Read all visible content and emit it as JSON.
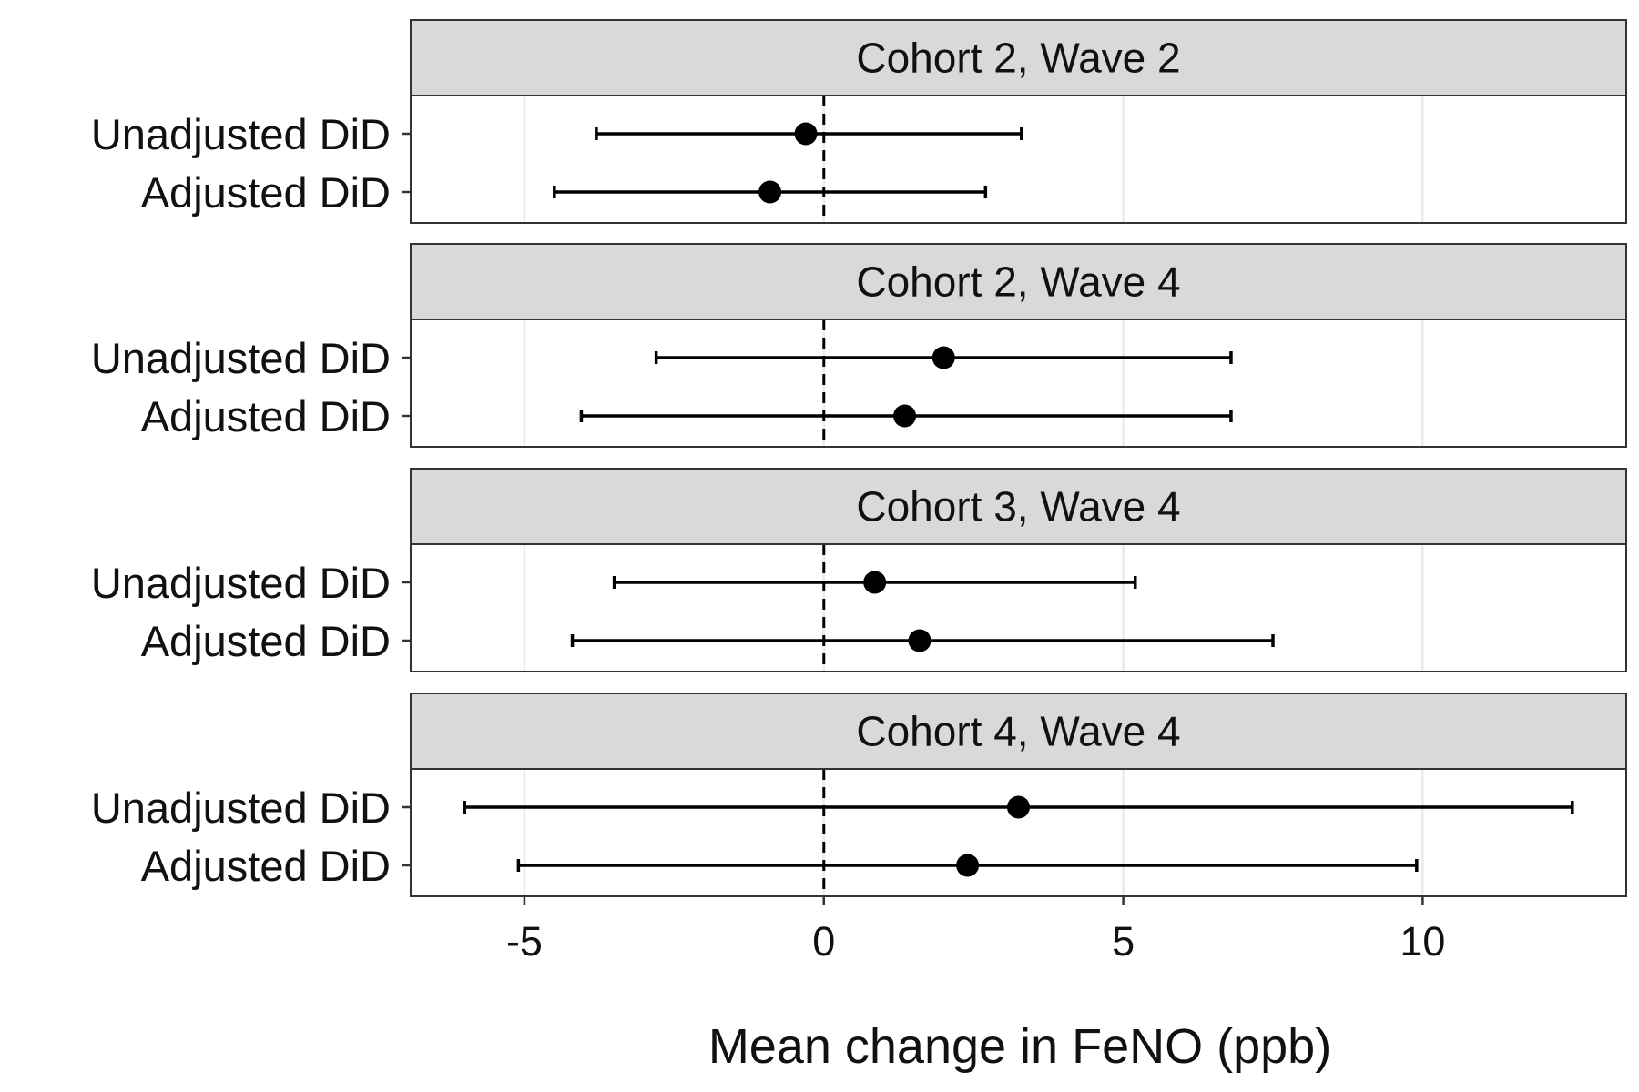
{
  "chart_data": {
    "type": "scatter",
    "subtype": "forest-plot-with-error-bars",
    "xlabel": "Mean change in FeNO (ppb)",
    "xlim": [
      -6.9,
      13.4
    ],
    "xticks": [
      -5,
      0,
      5,
      10
    ],
    "xtick_labels": [
      "-5",
      "0",
      "5",
      "10"
    ],
    "reference_line_x": 0,
    "grid": "vertical-major",
    "categories": [
      "Unadjusted DiD",
      "Adjusted DiD"
    ],
    "colors": {
      "strip_fill": "#d9d9d9",
      "panel_border": "#333333",
      "grid": "#ebebeb",
      "point": "#000000"
    },
    "panels": [
      {
        "title": "Cohort 2, Wave 2",
        "rows": [
          {
            "label": "Unadjusted DiD",
            "estimate": -0.3,
            "lower": -3.8,
            "upper": 3.3
          },
          {
            "label": "Adjusted DiD",
            "estimate": -0.9,
            "lower": -4.5,
            "upper": 2.7
          }
        ]
      },
      {
        "title": "Cohort 2, Wave 4",
        "rows": [
          {
            "label": "Unadjusted DiD",
            "estimate": 2.0,
            "lower": -2.8,
            "upper": 6.8
          },
          {
            "label": "Adjusted DiD",
            "estimate": 1.35,
            "lower": -4.05,
            "upper": 6.8
          }
        ]
      },
      {
        "title": "Cohort 3, Wave 4",
        "rows": [
          {
            "label": "Unadjusted DiD",
            "estimate": 0.85,
            "lower": -3.5,
            "upper": 5.2
          },
          {
            "label": "Adjusted DiD",
            "estimate": 1.6,
            "lower": -4.2,
            "upper": 7.5
          }
        ]
      },
      {
        "title": "Cohort 4, Wave 4",
        "rows": [
          {
            "label": "Unadjusted DiD",
            "estimate": 3.25,
            "lower": -6.0,
            "upper": 12.5
          },
          {
            "label": "Adjusted DiD",
            "estimate": 2.4,
            "lower": -5.1,
            "upper": 9.9
          }
        ]
      }
    ]
  }
}
